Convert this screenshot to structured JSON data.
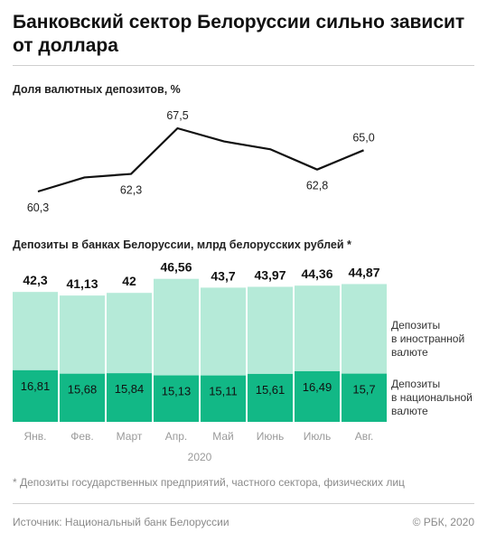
{
  "title": "Банковский сектор Белоруссии сильно зависит от доллара",
  "chart_data": [
    {
      "type": "line",
      "title": "Доля валютных депозитов, %",
      "x": [
        "Янв.",
        "Фев.",
        "Март",
        "Апр.",
        "Май",
        "Июнь",
        "Июль",
        "Авг."
      ],
      "values": [
        60.3,
        61.9,
        62.3,
        67.5,
        66.0,
        65.1,
        62.8,
        65.0
      ],
      "labels": [
        "60,3",
        "",
        "62,3",
        "67,5",
        "",
        "",
        "62,8",
        "65,0"
      ],
      "color": "#111111"
    },
    {
      "type": "bar",
      "stacked": true,
      "title": "Депозиты в банках Белоруссии, млрд белорусских рублей *",
      "categories": [
        "Янв.",
        "Фев.",
        "Март",
        "Апр.",
        "Май",
        "Июнь",
        "Июль",
        "Авг."
      ],
      "xlabel": "2020",
      "totals": [
        42.3,
        41.13,
        42,
        46.56,
        43.7,
        43.97,
        44.36,
        44.87
      ],
      "total_labels": [
        "42,3",
        "41,13",
        "42",
        "46,56",
        "43,7",
        "43,97",
        "44,36",
        "44,87"
      ],
      "series": [
        {
          "name": "Депозиты в национальной валюте",
          "legend_lines": [
            "Депозиты",
            "в национальной",
            "валюте"
          ],
          "values": [
            16.81,
            15.68,
            15.84,
            15.13,
            15.11,
            15.61,
            16.49,
            15.7
          ],
          "labels": [
            "16,81",
            "15,68",
            "15,84",
            "15,13",
            "15,11",
            "15,61",
            "16,49",
            "15,7"
          ],
          "color": "#12b886"
        },
        {
          "name": "Депозиты в иностранной валюте",
          "legend_lines": [
            "Депозиты",
            "в иностранной",
            "валюте"
          ],
          "values": [
            25.49,
            25.45,
            26.16,
            31.43,
            28.59,
            28.36,
            27.87,
            29.17
          ],
          "color": "#b5ead8"
        }
      ]
    }
  ],
  "footnote": "*  Депозиты государственных предприятий, частного сектора, физических лиц",
  "source": "Источник: Национальный банк Белоруссии",
  "copyright": "© РБК, 2020"
}
